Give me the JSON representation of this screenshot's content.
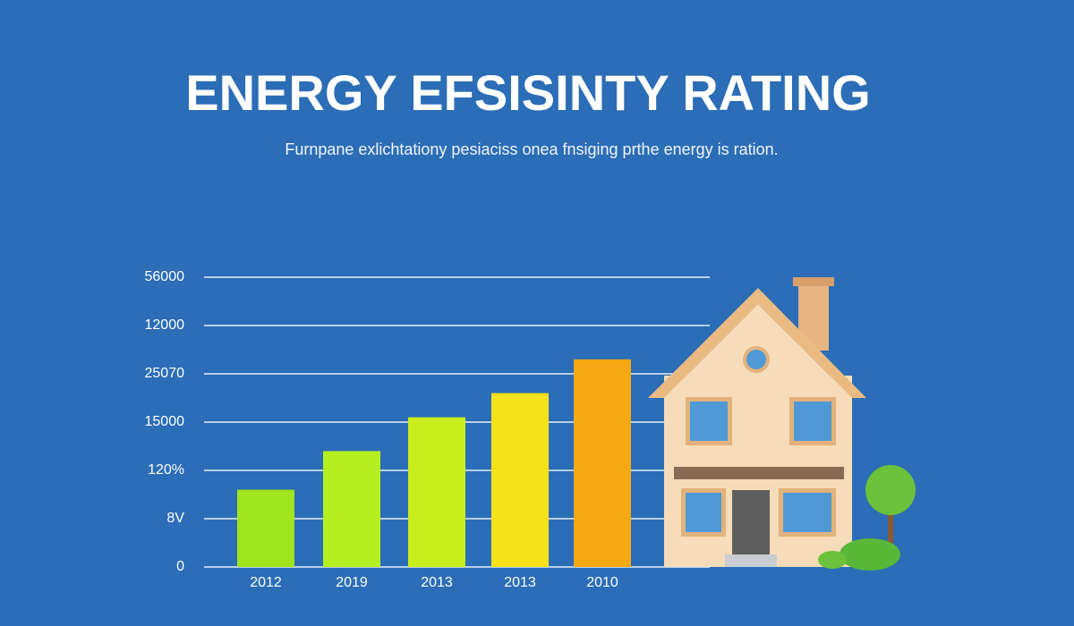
{
  "chart_data": {
    "type": "bar",
    "title": "ENERGY EFSISINTY RATING",
    "subtitle": "Furnpane exlichtationy pesiaciss onea fnsiging prthe energy is ration.",
    "categories": [
      "2012",
      "2019",
      "2013",
      "2013",
      "2010"
    ],
    "values": [
      1.6,
      2.4,
      3.1,
      3.6,
      4.3
    ],
    "colors": [
      "#9fe41c",
      "#b6ef1f",
      "#c9ee1b",
      "#f6e21a",
      "#f6a913"
    ],
    "ylim": [
      0,
      6
    ],
    "yticks": [
      0,
      {
        "value": 1,
        "label": "8V"
      },
      {
        "value": 2,
        "label": "120%"
      },
      {
        "value": 3,
        "label": "15000"
      },
      {
        "value": 4,
        "label": "25070"
      },
      {
        "value": 5,
        "label": "12000"
      },
      {
        "value": 6,
        "label": "56000"
      }
    ],
    "grid": true
  }
}
